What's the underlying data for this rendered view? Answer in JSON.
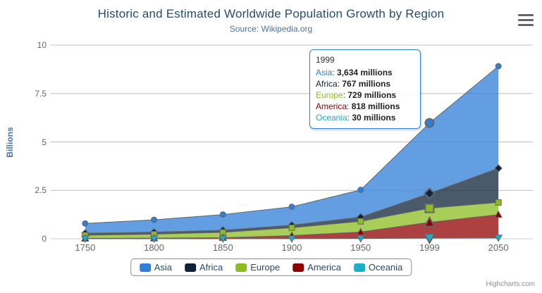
{
  "chart": {
    "title": "Historic and Estimated Worldwide Population Growth by Region",
    "subtitle": "Source: Wikipedia.org",
    "credits": "Highcharts.com"
  },
  "chart_data": {
    "type": "area",
    "stacking": "normal",
    "reversed_stacks": true,
    "categories": [
      "1750",
      "1800",
      "1850",
      "1900",
      "1950",
      "1999",
      "2050"
    ],
    "unit": "millions",
    "series": [
      {
        "name": "Asia",
        "color": "#2f7ed8",
        "marker": "circle",
        "values": [
          502,
          635,
          809,
          947,
          1402,
          3634,
          5268
        ]
      },
      {
        "name": "Africa",
        "color": "#0d233a",
        "marker": "diamond",
        "values": [
          106,
          107,
          111,
          133,
          221,
          767,
          1766
        ]
      },
      {
        "name": "Europe",
        "color": "#8bbc21",
        "marker": "square",
        "values": [
          163,
          203,
          276,
          408,
          547,
          729,
          628
        ]
      },
      {
        "name": "America",
        "color": "#910000",
        "marker": "triangle",
        "values": [
          18,
          31,
          54,
          156,
          339,
          818,
          1201
        ]
      },
      {
        "name": "Oceania",
        "color": "#1aadce",
        "marker": "triangle-down",
        "values": [
          2,
          2,
          2,
          6,
          13,
          30,
          46
        ]
      }
    ],
    "yAxis": {
      "title": "Billions",
      "ticks": [
        0,
        2.5,
        5,
        7.5,
        10
      ],
      "max": 10
    },
    "xAxis_line_color": "#c0d0e0",
    "grid": true,
    "grid_color": "#c0c0c0",
    "series_line_color": "#666666",
    "fill_opacity": 0.75,
    "legend_position": "bottom",
    "hover_index": 5
  },
  "tooltip": {
    "header": "1999",
    "rows": [
      {
        "name": "Asia",
        "color": "#2f7ed8",
        "value": "3,634 millions"
      },
      {
        "name": "Africa",
        "color": "#0d233a",
        "value": "767 millions"
      },
      {
        "name": "Europe",
        "color": "#8bbc21",
        "value": "729 millions"
      },
      {
        "name": "America",
        "color": "#910000",
        "value": "818 millions"
      },
      {
        "name": "Oceania",
        "color": "#1aadce",
        "value": "30 millions"
      }
    ]
  },
  "colors": {
    "title": "#274b6d",
    "subtitle": "#4d759e",
    "axis_label": "#666666",
    "yaxis_title": "#4572a7",
    "legend_text": "#274b6d",
    "tooltip_border": "#2f7ed8"
  }
}
